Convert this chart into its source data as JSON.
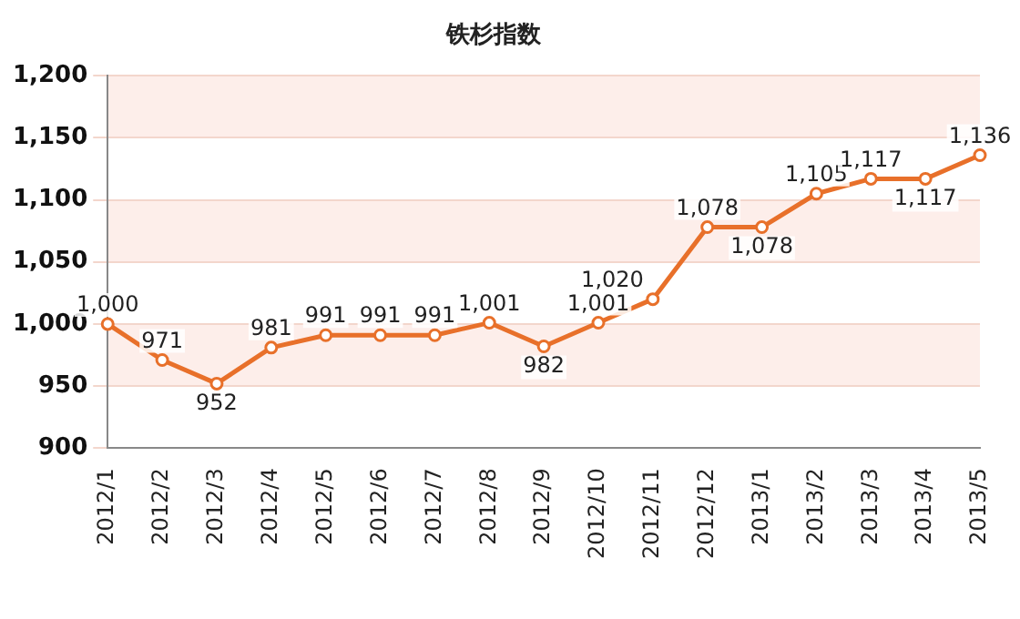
{
  "chart_data": {
    "type": "line",
    "title": "铁杉指数",
    "categories": [
      "2012/1",
      "2012/2",
      "2012/3",
      "2012/4",
      "2012/5",
      "2012/6",
      "2012/7",
      "2012/8",
      "2012/9",
      "2012/10",
      "2012/11",
      "2012/12",
      "2013/1",
      "2013/2",
      "2013/3",
      "2013/4",
      "2013/5"
    ],
    "series": [
      {
        "color": "#e8702a",
        "values": [
          1000,
          971,
          952,
          981,
          991,
          991,
          991,
          1001,
          982,
          1001,
          1020,
          1078,
          1078,
          1105,
          1117,
          1117,
          1136
        ],
        "value_labels": [
          "1,000",
          "971",
          "952",
          "981",
          "991",
          "991",
          "991",
          "1,001",
          "982",
          "1,001",
          "1,020",
          "1,078",
          "1,078",
          "1,105",
          "1,117",
          "1,117",
          "1,136"
        ]
      }
    ],
    "ylim": [
      900,
      1200
    ],
    "yticks": [
      {
        "value": 900,
        "label": "900"
      },
      {
        "value": 950,
        "label": "950"
      },
      {
        "value": 1000,
        "label": "1,000"
      },
      {
        "value": 1050,
        "label": "1,050"
      },
      {
        "value": 1100,
        "label": "1,100"
      },
      {
        "value": 1150,
        "label": "1,150"
      },
      {
        "value": 1200,
        "label": "1,200"
      }
    ],
    "grid": "y",
    "marker": "circle",
    "line_style": "solid",
    "legend": false
  }
}
